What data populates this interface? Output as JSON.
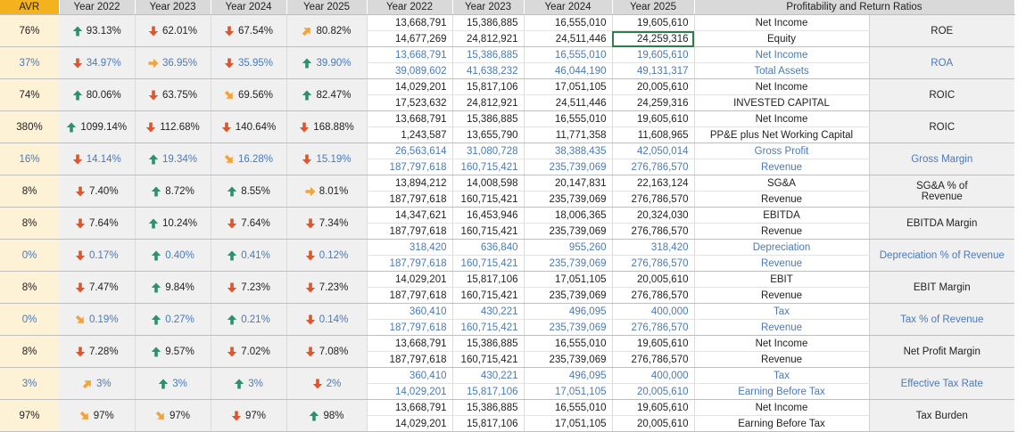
{
  "headers": {
    "avr": "AVR",
    "pct_years": [
      "Year 2022",
      "Year 2023",
      "Year 2024",
      "Year 2025"
    ],
    "val_years": [
      "Year 2022",
      "Year 2023",
      "Year 2024",
      "Year 2025"
    ],
    "title": "Profitability and Return Ratios"
  },
  "colors": {
    "up": "#2f8f6f",
    "down": "#e0562a",
    "side": "#f2a33a"
  },
  "ratios": [
    {
      "avr": "76%",
      "blue": false,
      "pcts": [
        {
          "v": "93.13%",
          "a": "up"
        },
        {
          "v": "62.01%",
          "a": "down"
        },
        {
          "v": "67.54%",
          "a": "down"
        },
        {
          "v": "80.82%",
          "a": "upright"
        }
      ],
      "top": [
        "13,668,791",
        "15,386,885",
        "16,555,010",
        "19,605,610"
      ],
      "top_label": "Net Income",
      "bot": [
        "14,677,269",
        "24,812,921",
        "24,511,446",
        "24,259,316"
      ],
      "bot_label": "Equity",
      "name": "ROE"
    },
    {
      "avr": "37%",
      "blue": true,
      "pcts": [
        {
          "v": "34.97%",
          "a": "down"
        },
        {
          "v": "36.95%",
          "a": "right"
        },
        {
          "v": "35.95%",
          "a": "down"
        },
        {
          "v": "39.90%",
          "a": "up"
        }
      ],
      "top": [
        "13,668,791",
        "15,386,885",
        "16,555,010",
        "19,605,610"
      ],
      "top_label": "Net Income",
      "bot": [
        "39,089,602",
        "41,638,232",
        "46,044,190",
        "49,131,317"
      ],
      "bot_label": "Total Assets",
      "name": "ROA"
    },
    {
      "avr": "74%",
      "blue": false,
      "pcts": [
        {
          "v": "80.06%",
          "a": "up"
        },
        {
          "v": "63.75%",
          "a": "down"
        },
        {
          "v": "69.56%",
          "a": "downright"
        },
        {
          "v": "82.47%",
          "a": "up"
        }
      ],
      "top": [
        "14,029,201",
        "15,817,106",
        "17,051,105",
        "20,005,610"
      ],
      "top_label": "Net Income",
      "bot": [
        "17,523,632",
        "24,812,921",
        "24,511,446",
        "24,259,316"
      ],
      "bot_label": "INVESTED CAPITAL",
      "name": "ROIC"
    },
    {
      "avr": "380%",
      "blue": false,
      "pcts": [
        {
          "v": "1099.14%",
          "a": "up"
        },
        {
          "v": "112.68%",
          "a": "down"
        },
        {
          "v": "140.64%",
          "a": "down"
        },
        {
          "v": "168.88%",
          "a": "down"
        }
      ],
      "top": [
        "13,668,791",
        "15,386,885",
        "16,555,010",
        "19,605,610"
      ],
      "top_label": "Net Income",
      "bot": [
        "1,243,587",
        "13,655,790",
        "11,771,358",
        "11,608,965"
      ],
      "bot_label": "PP&E plus Net Working Capital",
      "name": "ROIC"
    },
    {
      "avr": "16%",
      "blue": true,
      "pcts": [
        {
          "v": "14.14%",
          "a": "down"
        },
        {
          "v": "19.34%",
          "a": "up"
        },
        {
          "v": "16.28%",
          "a": "downright"
        },
        {
          "v": "15.19%",
          "a": "down"
        }
      ],
      "top": [
        "26,563,614",
        "31,080,728",
        "38,388,435",
        "42,050,014"
      ],
      "top_label": "Gross Profit",
      "bot": [
        "187,797,618",
        "160,715,421",
        "235,739,069",
        "276,786,570"
      ],
      "bot_label": "Revenue",
      "name": "Gross Margin"
    },
    {
      "avr": "8%",
      "blue": false,
      "pcts": [
        {
          "v": "7.40%",
          "a": "down"
        },
        {
          "v": "8.72%",
          "a": "up"
        },
        {
          "v": "8.55%",
          "a": "up"
        },
        {
          "v": "8.01%",
          "a": "right"
        }
      ],
      "top": [
        "13,894,212",
        "14,008,598",
        "20,147,831",
        "22,163,124"
      ],
      "top_label": "SG&A",
      "bot": [
        "187,797,618",
        "160,715,421",
        "235,739,069",
        "276,786,570"
      ],
      "bot_label": "Revenue",
      "name": "SG&A % of",
      "name2": "Revenue"
    },
    {
      "avr": "8%",
      "blue": false,
      "pcts": [
        {
          "v": "7.64%",
          "a": "down"
        },
        {
          "v": "10.24%",
          "a": "up"
        },
        {
          "v": "7.64%",
          "a": "down"
        },
        {
          "v": "7.34%",
          "a": "down"
        }
      ],
      "top": [
        "14,347,621",
        "16,453,946",
        "18,006,365",
        "20,324,030"
      ],
      "top_label": "EBITDA",
      "bot": [
        "187,797,618",
        "160,715,421",
        "235,739,069",
        "276,786,570"
      ],
      "bot_label": "Revenue",
      "name": "EBITDA Margin"
    },
    {
      "avr": "0%",
      "blue": true,
      "pcts": [
        {
          "v": "0.17%",
          "a": "down"
        },
        {
          "v": "0.40%",
          "a": "up"
        },
        {
          "v": "0.41%",
          "a": "up"
        },
        {
          "v": "0.12%",
          "a": "down"
        }
      ],
      "top": [
        "318,420",
        "636,840",
        "955,260",
        "318,420"
      ],
      "top_label": "Depreciation",
      "bot": [
        "187,797,618",
        "160,715,421",
        "235,739,069",
        "276,786,570"
      ],
      "bot_label": "Revenue",
      "name": "Depreciation % of Revenue"
    },
    {
      "avr": "8%",
      "blue": false,
      "pcts": [
        {
          "v": "7.47%",
          "a": "down"
        },
        {
          "v": "9.84%",
          "a": "up"
        },
        {
          "v": "7.23%",
          "a": "down"
        },
        {
          "v": "7.23%",
          "a": "down"
        }
      ],
      "top": [
        "14,029,201",
        "15,817,106",
        "17,051,105",
        "20,005,610"
      ],
      "top_label": "EBIT",
      "bot": [
        "187,797,618",
        "160,715,421",
        "235,739,069",
        "276,786,570"
      ],
      "bot_label": "Revenue",
      "name": "EBIT Margin"
    },
    {
      "avr": "0%",
      "blue": true,
      "pcts": [
        {
          "v": "0.19%",
          "a": "downright"
        },
        {
          "v": "0.27%",
          "a": "up"
        },
        {
          "v": "0.21%",
          "a": "up"
        },
        {
          "v": "0.14%",
          "a": "down"
        }
      ],
      "top": [
        "360,410",
        "430,221",
        "496,095",
        "400,000"
      ],
      "top_label": "Tax",
      "bot": [
        "187,797,618",
        "160,715,421",
        "235,739,069",
        "276,786,570"
      ],
      "bot_label": "Revenue",
      "name": "Tax % of Revenue"
    },
    {
      "avr": "8%",
      "blue": false,
      "pcts": [
        {
          "v": "7.28%",
          "a": "down"
        },
        {
          "v": "9.57%",
          "a": "up"
        },
        {
          "v": "7.02%",
          "a": "down"
        },
        {
          "v": "7.08%",
          "a": "down"
        }
      ],
      "top": [
        "13,668,791",
        "15,386,885",
        "16,555,010",
        "19,605,610"
      ],
      "top_label": "Net Income",
      "bot": [
        "187,797,618",
        "160,715,421",
        "235,739,069",
        "276,786,570"
      ],
      "bot_label": "Revenue",
      "name": "Net Profit Margin"
    },
    {
      "avr": "3%",
      "blue": true,
      "pcts": [
        {
          "v": "3%",
          "a": "upright"
        },
        {
          "v": "3%",
          "a": "up"
        },
        {
          "v": "3%",
          "a": "up"
        },
        {
          "v": "2%",
          "a": "down"
        }
      ],
      "top": [
        "360,410",
        "430,221",
        "496,095",
        "400,000"
      ],
      "top_label": "Tax",
      "bot": [
        "14,029,201",
        "15,817,106",
        "17,051,105",
        "20,005,610"
      ],
      "bot_label": "Earning Before Tax",
      "name": "Effective Tax Rate"
    },
    {
      "avr": "97%",
      "blue": false,
      "pcts": [
        {
          "v": "97%",
          "a": "downright"
        },
        {
          "v": "97%",
          "a": "downright"
        },
        {
          "v": "97%",
          "a": "down"
        },
        {
          "v": "98%",
          "a": "up"
        }
      ],
      "top": [
        "13,668,791",
        "15,386,885",
        "16,555,010",
        "19,605,610"
      ],
      "top_label": "Net Income",
      "bot": [
        "14,029,201",
        "15,817,106",
        "17,051,105",
        "20,005,610"
      ],
      "bot_label": "Earning Before Tax",
      "name": "Tax Burden"
    }
  ]
}
